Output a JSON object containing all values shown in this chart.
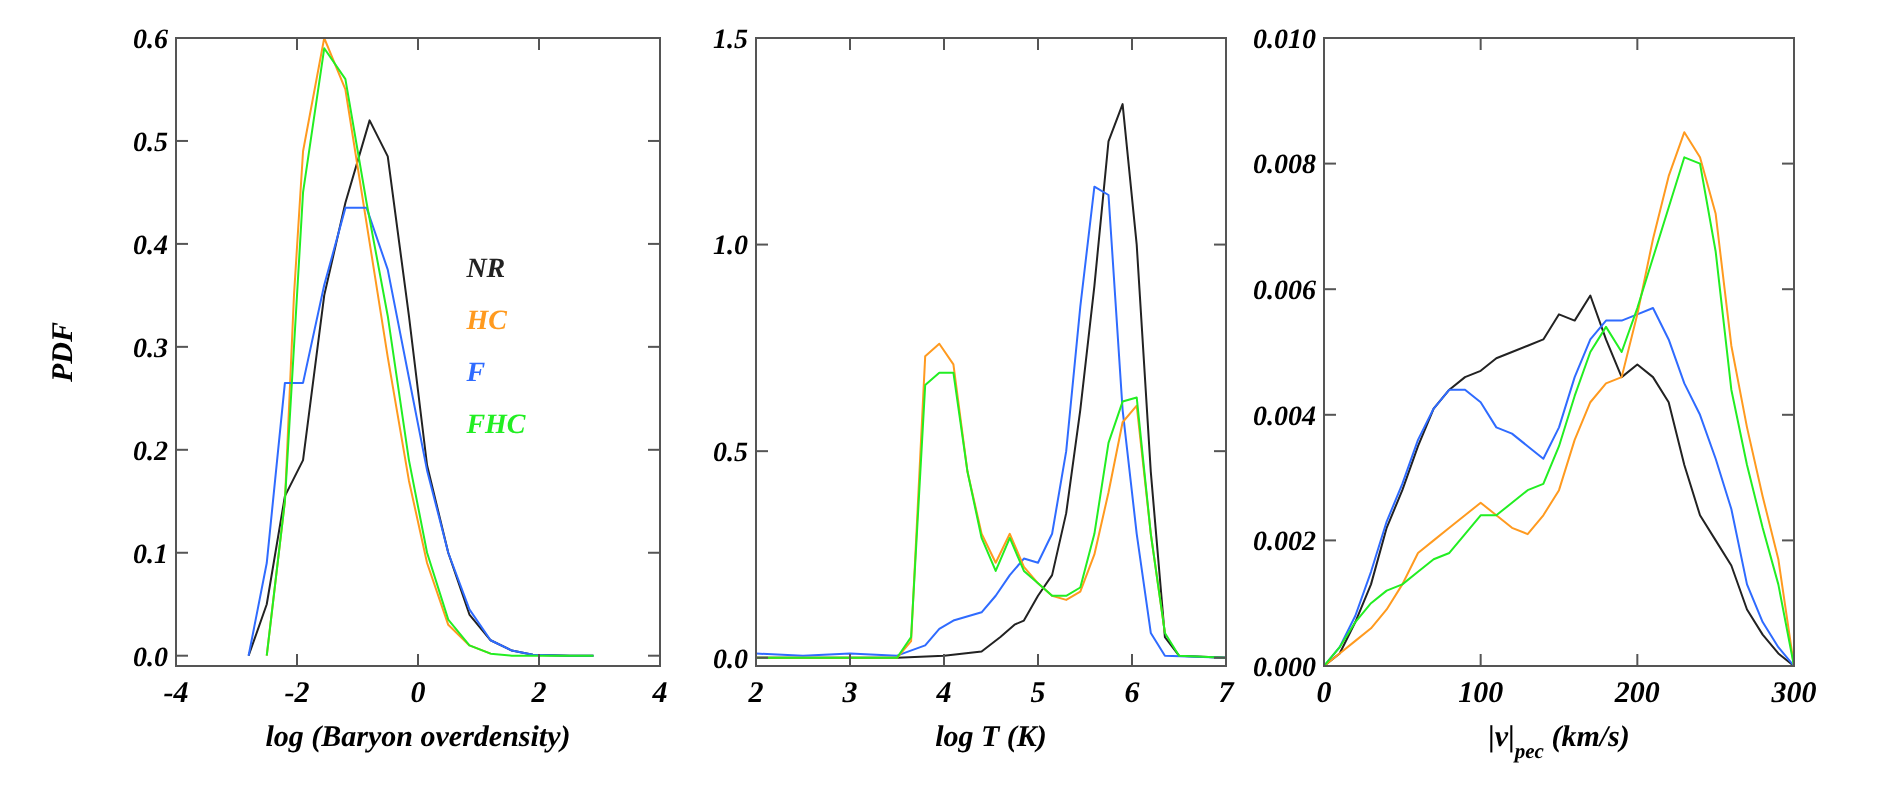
{
  "chart_data": [
    {
      "type": "line",
      "xlabel": "log (Baryon overdensity)",
      "ylabel": "PDF",
      "xlim": [
        -4,
        4
      ],
      "xticks": [
        -4,
        -2,
        0,
        2,
        4
      ],
      "ylim": [
        -0.01,
        0.6
      ],
      "yticks": [
        {
          "value": 0,
          "label": "0.0"
        },
        {
          "value": 0.1,
          "label": "0.1"
        },
        {
          "value": 0.2,
          "label": "0.2"
        },
        {
          "value": 0.3,
          "label": "0.3"
        },
        {
          "value": 0.4,
          "label": "0.4"
        },
        {
          "value": 0.5,
          "label": "0.5"
        },
        {
          "value": 0.6,
          "label": "0.6"
        }
      ],
      "grid": false,
      "legend": "right",
      "marker": "none",
      "line_style": "solid",
      "series": [
        {
          "name": "NR",
          "color": "#222222",
          "x": [
            -2.8,
            -2.5,
            -2.2,
            -1.9,
            -1.55,
            -1.2,
            -0.8,
            -0.5,
            -0.15,
            0.15,
            0.5,
            0.85,
            1.2,
            1.55,
            1.9,
            2.5,
            2.9
          ],
          "values": [
            0,
            0.05,
            0.155,
            0.19,
            0.35,
            0.44,
            0.52,
            0.485,
            0.33,
            0.185,
            0.1,
            0.04,
            0.015,
            0.005,
            0.001,
            0,
            0
          ]
        },
        {
          "name": "HC",
          "color": "#ff9a1f",
          "x": [
            -2.5,
            -2.2,
            -2.05,
            -1.9,
            -1.55,
            -1.2,
            -0.85,
            -0.5,
            -0.15,
            0.15,
            0.5,
            0.85,
            1.2
          ],
          "values": [
            0,
            0.15,
            0.35,
            0.49,
            0.6,
            0.55,
            0.42,
            0.29,
            0.17,
            0.09,
            0.03,
            0.01,
            0.002
          ]
        },
        {
          "name": "F",
          "color": "#2f6bff",
          "x": [
            -2.8,
            -2.5,
            -2.2,
            -1.9,
            -1.55,
            -1.2,
            -0.85,
            -0.5,
            -0.15,
            0.15,
            0.5,
            0.85,
            1.2,
            1.55,
            1.9,
            2.5,
            2.9
          ],
          "values": [
            0,
            0.09,
            0.265,
            0.265,
            0.36,
            0.435,
            0.435,
            0.375,
            0.27,
            0.18,
            0.1,
            0.045,
            0.015,
            0.005,
            0.001,
            0,
            0
          ]
        },
        {
          "name": "FHC",
          "color": "#22ee22",
          "x": [
            -2.5,
            -2.2,
            -1.9,
            -1.55,
            -1.2,
            -0.85,
            -0.5,
            -0.15,
            0.15,
            0.5,
            0.85,
            1.2,
            1.55,
            2.9
          ],
          "values": [
            0,
            0.15,
            0.45,
            0.59,
            0.56,
            0.44,
            0.33,
            0.19,
            0.1,
            0.035,
            0.01,
            0.002,
            0,
            0
          ]
        }
      ]
    },
    {
      "type": "line",
      "xlabel": "log T (K)",
      "xlim": [
        2,
        7
      ],
      "xticks": [
        2,
        3,
        4,
        5,
        6,
        7
      ],
      "ylim": [
        -0.02,
        1.5
      ],
      "yticks": [
        {
          "value": 0,
          "label": "0.0"
        },
        0.5,
        {
          "value": 1,
          "label": "1.0"
        },
        1.5
      ],
      "grid": false,
      "marker": "none",
      "line_style": "solid",
      "series": [
        {
          "color": "#222222",
          "x": [
            2,
            3,
            3.5,
            4,
            4.4,
            4.6,
            4.75,
            4.85,
            5.0,
            5.15,
            5.3,
            5.45,
            5.6,
            5.75,
            5.9,
            6.05,
            6.2,
            6.35,
            6.5,
            7
          ],
          "values": [
            0,
            0,
            0,
            0.005,
            0.015,
            0.05,
            0.08,
            0.09,
            0.15,
            0.2,
            0.35,
            0.6,
            0.9,
            1.25,
            1.34,
            1.0,
            0.45,
            0.05,
            0.005,
            0
          ]
        },
        {
          "color": "#2f6bff",
          "x": [
            2,
            2.5,
            3,
            3.5,
            3.8,
            3.95,
            4.1,
            4.4,
            4.55,
            4.7,
            4.85,
            5.0,
            5.15,
            5.3,
            5.45,
            5.6,
            5.75,
            5.9,
            6.05,
            6.2,
            6.35,
            7
          ],
          "values": [
            0.01,
            0.005,
            0.01,
            0.005,
            0.03,
            0.07,
            0.09,
            0.11,
            0.15,
            0.2,
            0.24,
            0.23,
            0.3,
            0.5,
            0.85,
            1.14,
            1.12,
            0.6,
            0.3,
            0.06,
            0.005,
            0
          ]
        },
        {
          "color": "#ff9a1f",
          "x": [
            2,
            3.5,
            3.65,
            3.8,
            3.95,
            4.1,
            4.25,
            4.4,
            4.55,
            4.7,
            4.85,
            5.0,
            5.15,
            5.3,
            5.45,
            5.6,
            5.75,
            5.9,
            6.05,
            6.2,
            6.35
          ],
          "values": [
            0,
            0,
            0.04,
            0.73,
            0.76,
            0.71,
            0.45,
            0.3,
            0.23,
            0.3,
            0.22,
            0.18,
            0.15,
            0.14,
            0.16,
            0.25,
            0.4,
            0.57,
            0.61,
            0.3,
            0.06
          ]
        },
        {
          "color": "#22ee22",
          "x": [
            2,
            3.5,
            3.65,
            3.8,
            3.95,
            4.1,
            4.25,
            4.4,
            4.55,
            4.7,
            4.85,
            5.0,
            5.15,
            5.3,
            5.45,
            5.6,
            5.75,
            5.9,
            6.05,
            6.2,
            6.35,
            6.5,
            7
          ],
          "values": [
            0,
            0,
            0.05,
            0.66,
            0.69,
            0.69,
            0.45,
            0.29,
            0.21,
            0.29,
            0.21,
            0.18,
            0.15,
            0.15,
            0.17,
            0.3,
            0.52,
            0.62,
            0.63,
            0.3,
            0.06,
            0.005,
            0
          ]
        }
      ]
    },
    {
      "type": "line",
      "xlabel": "|v|$_{pec}$ (km/s)",
      "xlim": [
        0,
        300
      ],
      "xticks": [
        0,
        100,
        200,
        300
      ],
      "ylim": [
        0,
        0.01
      ],
      "yticks": [
        {
          "value": 0,
          "label": "0.000"
        },
        {
          "value": 0.002,
          "label": "0.002"
        },
        {
          "value": 0.004,
          "label": "0.004"
        },
        {
          "value": 0.006,
          "label": "0.006"
        },
        {
          "value": 0.008,
          "label": "0.008"
        },
        {
          "value": 0.01,
          "label": "0.010"
        }
      ],
      "grid": false,
      "marker": "none",
      "line_style": "solid",
      "x": [
        0,
        10,
        20,
        30,
        40,
        50,
        60,
        70,
        80,
        90,
        100,
        110,
        120,
        130,
        140,
        150,
        160,
        170,
        180,
        190,
        200,
        210,
        220,
        230,
        240,
        250,
        260,
        270,
        280,
        290,
        300
      ],
      "series": [
        {
          "color": "#222222",
          "values": [
            0,
            0.0002,
            0.0007,
            0.0013,
            0.0022,
            0.0028,
            0.0035,
            0.0041,
            0.0044,
            0.0046,
            0.0047,
            0.0049,
            0.005,
            0.0051,
            0.0052,
            0.0056,
            0.0055,
            0.0059,
            0.0052,
            0.0046,
            0.0048,
            0.0046,
            0.0042,
            0.0032,
            0.0024,
            0.002,
            0.0016,
            0.0009,
            0.0005,
            0.0002,
            0
          ]
        },
        {
          "color": "#2f6bff",
          "values": [
            0,
            0.0003,
            0.0008,
            0.0015,
            0.0023,
            0.0029,
            0.0036,
            0.0041,
            0.0044,
            0.0044,
            0.0042,
            0.0038,
            0.0037,
            0.0035,
            0.0033,
            0.0038,
            0.0046,
            0.0052,
            0.0055,
            0.0055,
            0.0056,
            0.0057,
            0.0052,
            0.0045,
            0.004,
            0.0033,
            0.0025,
            0.0013,
            0.0007,
            0.0003,
            0
          ]
        },
        {
          "color": "#ff9a1f",
          "values": [
            0,
            0.0002,
            0.0004,
            0.0006,
            0.0009,
            0.0013,
            0.0018,
            0.002,
            0.0022,
            0.0024,
            0.0026,
            0.0024,
            0.0022,
            0.0021,
            0.0024,
            0.0028,
            0.0036,
            0.0042,
            0.0045,
            0.0046,
            0.0056,
            0.0068,
            0.0078,
            0.0085,
            0.0081,
            0.0072,
            0.0051,
            0.0038,
            0.0027,
            0.0017,
            0
          ]
        },
        {
          "color": "#22ee22",
          "values": [
            0,
            0.0003,
            0.0007,
            0.001,
            0.0012,
            0.0013,
            0.0015,
            0.0017,
            0.0018,
            0.0021,
            0.0024,
            0.0024,
            0.0026,
            0.0028,
            0.0029,
            0.0035,
            0.0043,
            0.005,
            0.0054,
            0.005,
            0.0057,
            0.0065,
            0.0073,
            0.0081,
            0.008,
            0.0066,
            0.0044,
            0.0032,
            0.0022,
            0.0013,
            0
          ]
        }
      ]
    }
  ]
}
